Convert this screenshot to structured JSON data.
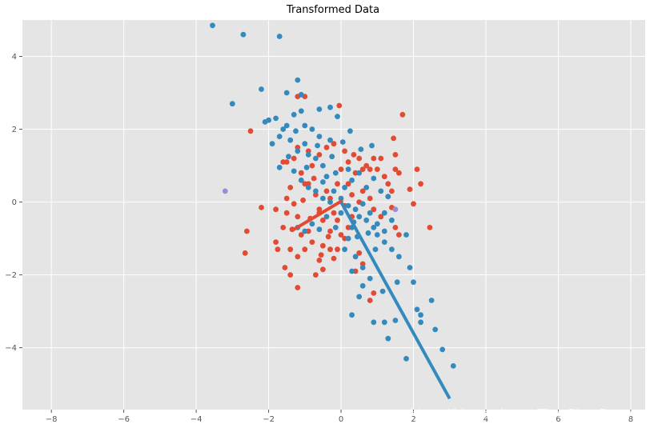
{
  "chart_data": {
    "type": "scatter",
    "title": "Transformed Data",
    "xlabel": "",
    "ylabel": "",
    "xlim": [
      -8.8,
      8.4
    ],
    "ylim": [
      -5.7,
      5.0
    ],
    "xticks": [
      -8,
      -6,
      -4,
      -2,
      0,
      2,
      4,
      6,
      8
    ],
    "yticks": [
      -4,
      -2,
      0,
      2,
      4
    ],
    "grid": true,
    "legend": "none",
    "colors": {
      "background": "#e5e5e5",
      "grid": "#ffffff",
      "red": "#e24a33",
      "blue": "#348abd",
      "purple": "#988ed5"
    },
    "series": [
      {
        "color": "red",
        "points": [
          [
            -2.5,
            1.95
          ],
          [
            -2.2,
            -0.15
          ],
          [
            -2.6,
            -0.8
          ],
          [
            -2.65,
            -1.4
          ],
          [
            -1.8,
            -0.2
          ],
          [
            -1.8,
            -1.1
          ],
          [
            -1.75,
            -1.3
          ],
          [
            -1.6,
            -0.7
          ],
          [
            -1.5,
            -0.3
          ],
          [
            -1.6,
            1.1
          ],
          [
            -1.5,
            1.1
          ],
          [
            -1.3,
            1.2
          ],
          [
            -1.2,
            2.9
          ],
          [
            -1.0,
            2.9
          ],
          [
            -1.2,
            1.5
          ],
          [
            -1.1,
            0.8
          ],
          [
            -1.0,
            0.5
          ],
          [
            -1.4,
            0.4
          ],
          [
            -1.3,
            -0.05
          ],
          [
            -1.2,
            -0.4
          ],
          [
            -1.1,
            -0.9
          ],
          [
            -0.9,
            -0.8
          ],
          [
            -0.8,
            -1.1
          ],
          [
            -1.0,
            -1.3
          ],
          [
            -1.2,
            -1.5
          ],
          [
            -1.4,
            -1.3
          ],
          [
            -1.55,
            -1.8
          ],
          [
            -1.4,
            -2.0
          ],
          [
            -1.2,
            -2.35
          ],
          [
            -0.7,
            -2.0
          ],
          [
            -0.5,
            -1.85
          ],
          [
            -0.6,
            -1.6
          ],
          [
            -0.5,
            -1.2
          ],
          [
            -0.3,
            -1.3
          ],
          [
            -0.2,
            -1.55
          ],
          [
            -0.1,
            -1.3
          ],
          [
            -0.3,
            -0.8
          ],
          [
            -0.5,
            -0.5
          ],
          [
            -0.6,
            -0.2
          ],
          [
            -0.7,
            0.2
          ],
          [
            -0.9,
            0.5
          ],
          [
            -0.8,
            1.0
          ],
          [
            -0.6,
            1.3
          ],
          [
            -0.4,
            1.5
          ],
          [
            -0.2,
            1.6
          ],
          [
            -0.05,
            2.65
          ],
          [
            0.1,
            1.4
          ],
          [
            0.2,
            1.1
          ],
          [
            0.35,
            1.3
          ],
          [
            0.4,
            0.8
          ],
          [
            0.5,
            1.2
          ],
          [
            0.6,
            0.9
          ],
          [
            0.7,
            1.0
          ],
          [
            0.8,
            0.9
          ],
          [
            0.9,
            1.2
          ],
          [
            1.0,
            0.9
          ],
          [
            1.1,
            1.2
          ],
          [
            1.2,
            0.7
          ],
          [
            1.3,
            0.5
          ],
          [
            1.4,
            0.3
          ],
          [
            1.5,
            0.9
          ],
          [
            1.45,
            1.75
          ],
          [
            1.5,
            1.3
          ],
          [
            1.6,
            0.8
          ],
          [
            1.7,
            2.4
          ],
          [
            1.9,
            0.35
          ],
          [
            2.0,
            -0.05
          ],
          [
            2.1,
            0.9
          ],
          [
            2.2,
            0.5
          ],
          [
            2.45,
            -0.7
          ],
          [
            1.5,
            -0.7
          ],
          [
            1.6,
            -0.9
          ],
          [
            1.4,
            -0.15
          ],
          [
            1.1,
            -0.4
          ],
          [
            0.9,
            -0.2
          ],
          [
            0.8,
            0.1
          ],
          [
            0.6,
            0.3
          ],
          [
            0.5,
            0.0
          ],
          [
            0.3,
            -0.4
          ],
          [
            0.2,
            -0.7
          ],
          [
            0.1,
            -1.0
          ],
          [
            0.0,
            -0.9
          ],
          [
            -0.1,
            -0.5
          ],
          [
            -0.2,
            -0.3
          ],
          [
            -0.3,
            0.1
          ],
          [
            -0.4,
            0.3
          ],
          [
            -0.1,
            0.5
          ],
          [
            0.0,
            0.9
          ],
          [
            0.2,
            0.5
          ],
          [
            0.3,
            0.2
          ],
          [
            0.1,
            -0.1
          ],
          [
            0.9,
            -2.5
          ],
          [
            0.8,
            -2.7
          ],
          [
            0.6,
            -1.7
          ],
          [
            0.5,
            -1.4
          ],
          [
            0.4,
            -1.9
          ],
          [
            -0.6,
            -0.3
          ],
          [
            -0.75,
            0.65
          ],
          [
            -0.9,
            1.4
          ],
          [
            -1.05,
            0.05
          ],
          [
            -1.5,
            0.1
          ],
          [
            -1.35,
            -0.75
          ],
          [
            -0.85,
            -0.45
          ],
          [
            -0.55,
            -1.45
          ],
          [
            -0.35,
            -0.95
          ]
        ]
      },
      {
        "color": "blue",
        "points": [
          [
            -3.55,
            4.85
          ],
          [
            -2.7,
            4.6
          ],
          [
            -1.7,
            4.55
          ],
          [
            -3.0,
            2.7
          ],
          [
            -2.2,
            3.1
          ],
          [
            -1.5,
            3.0
          ],
          [
            -1.2,
            3.35
          ],
          [
            -1.1,
            2.95
          ],
          [
            -0.6,
            2.55
          ],
          [
            -0.3,
            2.6
          ],
          [
            -2.1,
            2.2
          ],
          [
            -2.0,
            2.25
          ],
          [
            -1.8,
            2.3
          ],
          [
            -1.6,
            2.0
          ],
          [
            -1.5,
            2.1
          ],
          [
            -1.3,
            2.4
          ],
          [
            -1.1,
            2.5
          ],
          [
            -1.0,
            2.1
          ],
          [
            -0.8,
            2.0
          ],
          [
            -0.6,
            1.8
          ],
          [
            -0.3,
            1.7
          ],
          [
            -0.1,
            2.35
          ],
          [
            -1.9,
            1.6
          ],
          [
            -1.7,
            1.8
          ],
          [
            -1.4,
            1.7
          ],
          [
            -1.2,
            1.4
          ],
          [
            -1.0,
            1.6
          ],
          [
            -0.9,
            1.3
          ],
          [
            -0.7,
            1.2
          ],
          [
            -0.5,
            1.0
          ],
          [
            -0.4,
            0.7
          ],
          [
            -1.7,
            0.95
          ],
          [
            -1.3,
            0.85
          ],
          [
            -1.1,
            0.6
          ],
          [
            -0.9,
            0.4
          ],
          [
            -0.7,
            0.3
          ],
          [
            -0.5,
            0.1
          ],
          [
            -0.2,
            0.3
          ],
          [
            0.0,
            0.1
          ],
          [
            0.2,
            -0.1
          ],
          [
            0.4,
            -0.2
          ],
          [
            0.5,
            -0.4
          ],
          [
            0.7,
            -0.5
          ],
          [
            0.9,
            -0.7
          ],
          [
            1.0,
            -0.9
          ],
          [
            1.2,
            -1.1
          ],
          [
            1.4,
            -1.3
          ],
          [
            1.6,
            -1.5
          ],
          [
            1.9,
            -1.8
          ],
          [
            2.0,
            -2.2
          ],
          [
            1.2,
            -0.8
          ],
          [
            1.0,
            -0.6
          ],
          [
            0.8,
            -0.3
          ],
          [
            0.3,
            -0.7
          ],
          [
            0.2,
            -1.0
          ],
          [
            0.1,
            -1.3
          ],
          [
            0.4,
            -1.5
          ],
          [
            0.6,
            -1.8
          ],
          [
            0.8,
            -2.1
          ],
          [
            0.6,
            -2.3
          ],
          [
            0.5,
            -2.6
          ],
          [
            0.3,
            -1.9
          ],
          [
            0.3,
            -3.1
          ],
          [
            0.9,
            -3.3
          ],
          [
            1.2,
            -3.3
          ],
          [
            1.3,
            -3.75
          ],
          [
            1.5,
            -3.25
          ],
          [
            1.8,
            -4.3
          ],
          [
            2.1,
            -2.95
          ],
          [
            2.2,
            -3.1
          ],
          [
            2.2,
            -3.3
          ],
          [
            2.5,
            -2.7
          ],
          [
            2.6,
            -3.5
          ],
          [
            2.8,
            -4.05
          ],
          [
            3.1,
            -4.5
          ],
          [
            1.8,
            -0.9
          ],
          [
            1.4,
            -0.5
          ],
          [
            1.2,
            -0.3
          ],
          [
            1.3,
            0.15
          ],
          [
            1.1,
            0.3
          ],
          [
            0.7,
            0.4
          ],
          [
            0.9,
            0.65
          ],
          [
            0.5,
            0.8
          ],
          [
            0.3,
            0.6
          ],
          [
            -0.15,
            0.8
          ],
          [
            -0.6,
            -0.75
          ],
          [
            -0.8,
            -0.6
          ],
          [
            -1.0,
            -0.8
          ],
          [
            -1.2,
            -0.7
          ],
          [
            -0.4,
            -0.4
          ],
          [
            -0.3,
            0.0
          ],
          [
            0.0,
            -0.3
          ],
          [
            0.1,
            0.4
          ],
          [
            0.2,
            0.9
          ],
          [
            0.6,
            -0.05
          ],
          [
            0.75,
            -0.85
          ],
          [
            0.95,
            -1.3
          ],
          [
            0.45,
            -0.95
          ],
          [
            -0.65,
            1.55
          ],
          [
            -1.45,
            1.25
          ],
          [
            -0.95,
            0.95
          ],
          [
            -0.25,
            1.25
          ],
          [
            -1.25,
            1.95
          ],
          [
            0.05,
            1.65
          ],
          [
            0.25,
            1.95
          ],
          [
            0.55,
            1.45
          ],
          [
            0.85,
            1.55
          ],
          [
            1.15,
            -2.45
          ],
          [
            1.55,
            -2.2
          ],
          [
            0.35,
            -0.55
          ],
          [
            -0.5,
            0.55
          ],
          [
            -0.15,
            -0.7
          ]
        ]
      },
      {
        "color": "purple",
        "points": [
          [
            -3.2,
            0.3
          ],
          [
            1.5,
            -0.2
          ]
        ]
      }
    ],
    "lines": [
      {
        "color": "red",
        "width": 4,
        "from": [
          -1.3,
          -0.75
        ],
        "to": [
          0.05,
          0.05
        ]
      },
      {
        "color": "blue",
        "width": 4,
        "from": [
          0.0,
          0.0
        ],
        "to": [
          3.0,
          -5.4
        ]
      }
    ]
  },
  "watermark": "https://blog.csdn.net/TimeRiverForever"
}
